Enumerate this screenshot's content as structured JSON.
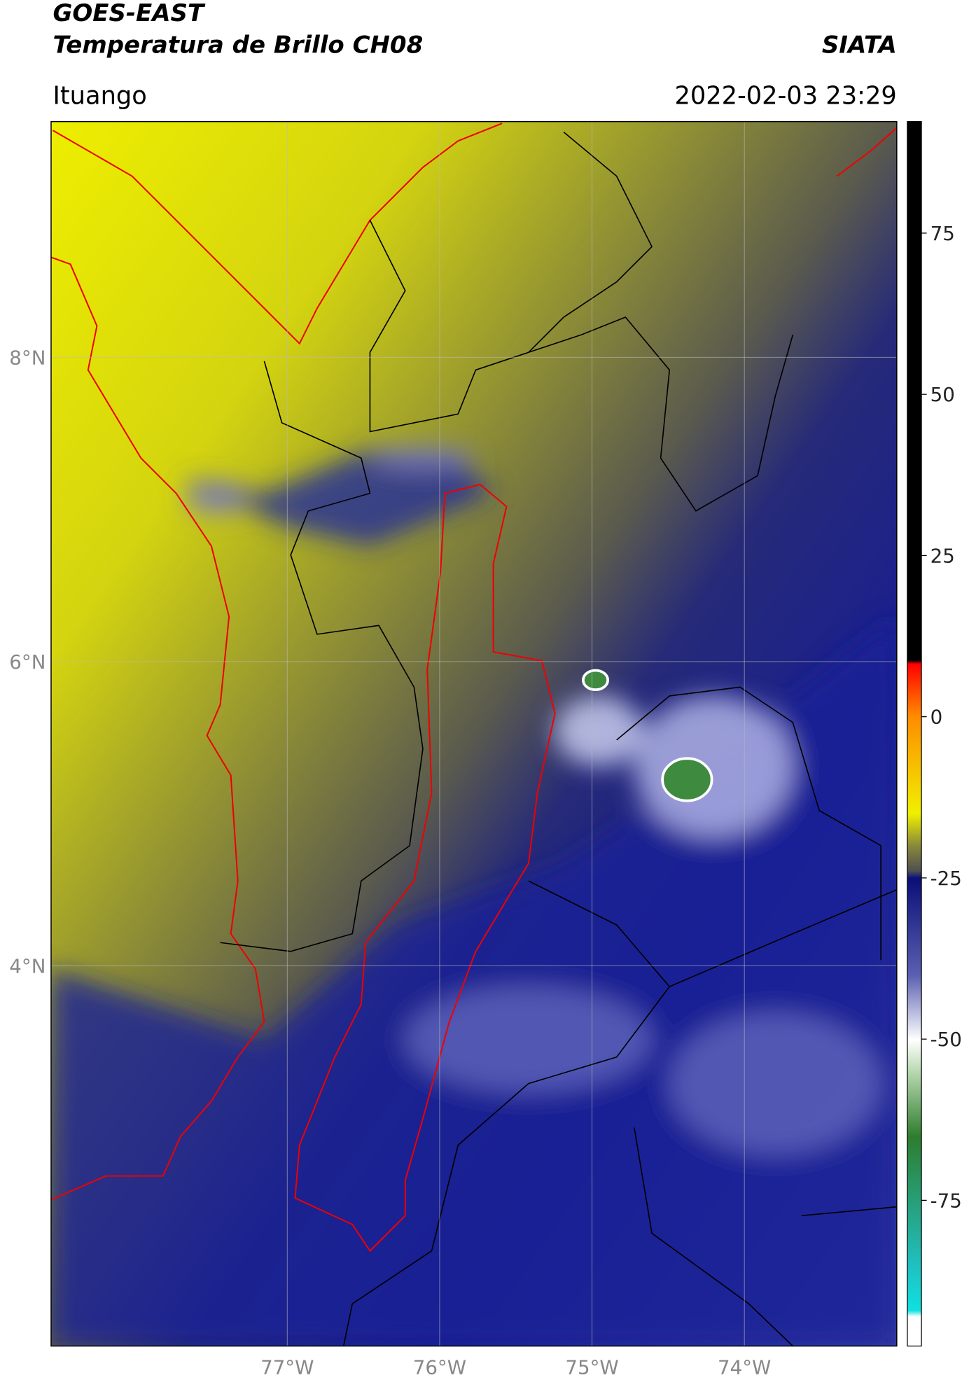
{
  "header": {
    "title": "GOES-EAST",
    "subtitle": "Temperatura de Brillo CH08",
    "source": "SIATA",
    "location": "Ituango",
    "datetime": "2022-02-03 23:29"
  },
  "map": {
    "lonlim": [
      -78.55,
      -73
    ],
    "latlim": [
      1.5,
      9.55
    ],
    "grid": true,
    "lonticks": [
      {
        "value": -77,
        "label": "77°W"
      },
      {
        "value": -76,
        "label": "76°W"
      },
      {
        "value": -75,
        "label": "75°W"
      },
      {
        "value": -74,
        "label": "74°W"
      }
    ],
    "latticks": [
      {
        "value": 4,
        "label": "4°N"
      },
      {
        "value": 6,
        "label": "6°N"
      },
      {
        "value": 8,
        "label": "8°N"
      }
    ]
  },
  "colorbar": {
    "lim": [
      -97.6,
      92.3
    ],
    "ticks": [
      -75,
      -50,
      -25,
      0,
      25,
      50,
      75
    ]
  }
}
